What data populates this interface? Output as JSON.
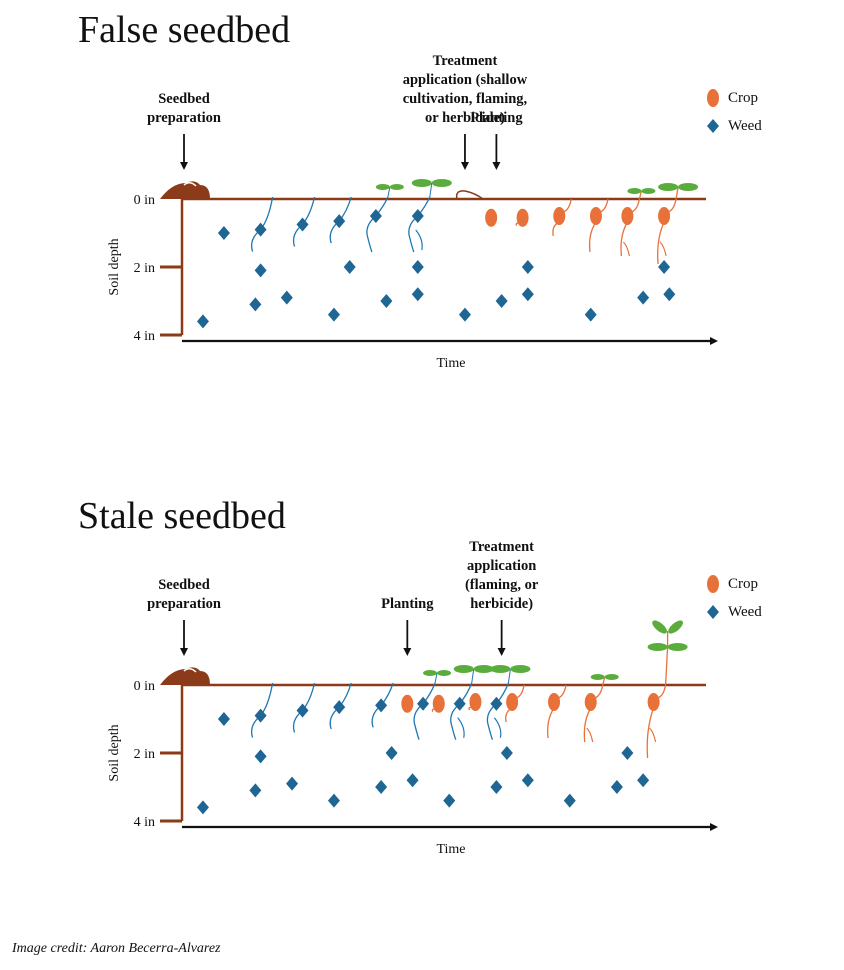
{
  "colors": {
    "soil": "#8b3a1a",
    "crop": "#e8713a",
    "weed": "#1f6694",
    "leaf": "#5aad3c",
    "weed_root": "#1f78b4",
    "arrow": "#111111"
  },
  "legend": {
    "crop_label": "Crop",
    "weed_label": "Weed",
    "crop_icon": "orange-ellipse-seed",
    "weed_icon": "blue-diamond-seed"
  },
  "axes": {
    "y_label": "Soil depth",
    "x_label": "Time",
    "y_ticks": [
      "0 in",
      "2 in",
      "4 in"
    ],
    "y_tick_values_in": [
      0,
      2,
      4
    ]
  },
  "panels": [
    {
      "id": "false",
      "title": "False seedbed",
      "annotations": [
        {
          "key": "seedbed",
          "lines": [
            "Seedbed",
            "preparation"
          ],
          "time": 0.0
        },
        {
          "key": "treatment",
          "lines": [
            "Treatment",
            "application (shallow",
            "cultivation, flaming,",
            "or herbicide)"
          ],
          "time": 0.54
        },
        {
          "key": "planting",
          "lines": [
            "Planting"
          ],
          "time": 0.6
        }
      ],
      "treatment_mark": "cut-weed-residue",
      "weeds_scattered": [
        [
          0.08,
          1.0
        ],
        [
          0.15,
          2.1
        ],
        [
          0.32,
          2.0
        ],
        [
          0.45,
          2.0
        ],
        [
          0.66,
          2.0
        ],
        [
          0.92,
          2.0
        ],
        [
          0.04,
          3.6
        ],
        [
          0.14,
          3.1
        ],
        [
          0.2,
          2.9
        ],
        [
          0.29,
          3.4
        ],
        [
          0.39,
          3.0
        ],
        [
          0.45,
          2.8
        ],
        [
          0.54,
          3.4
        ],
        [
          0.61,
          3.0
        ],
        [
          0.66,
          2.8
        ],
        [
          0.78,
          3.4
        ],
        [
          0.88,
          2.9
        ],
        [
          0.93,
          2.8
        ]
      ],
      "weeds_germinating": [
        {
          "t": 0.15,
          "d": 0.9,
          "stage": 1
        },
        {
          "t": 0.23,
          "d": 0.75,
          "stage": 1
        },
        {
          "t": 0.3,
          "d": 0.65,
          "stage": 1
        },
        {
          "t": 0.37,
          "d": 0.5,
          "stage": 2
        },
        {
          "t": 0.45,
          "d": 0.5,
          "stage": 3
        }
      ],
      "crops": [
        {
          "t": 0.59,
          "d": 0.55,
          "stage": 0
        },
        {
          "t": 0.65,
          "d": 0.55,
          "stage": 1
        },
        {
          "t": 0.72,
          "d": 0.5,
          "stage": 2
        },
        {
          "t": 0.79,
          "d": 0.5,
          "stage": 3
        },
        {
          "t": 0.85,
          "d": 0.5,
          "stage": 4
        },
        {
          "t": 0.92,
          "d": 0.5,
          "stage": 5
        }
      ]
    },
    {
      "id": "stale",
      "title": "Stale seedbed",
      "annotations": [
        {
          "key": "seedbed",
          "lines": [
            "Seedbed",
            "preparation"
          ],
          "time": 0.0
        },
        {
          "key": "planting",
          "lines": [
            "Planting"
          ],
          "time": 0.43
        },
        {
          "key": "treatment",
          "lines": [
            "Treatment",
            "application",
            "(flaming, or",
            "herbicide)"
          ],
          "time": 0.61
        }
      ],
      "treatment_mark": "none",
      "weeds_scattered": [
        [
          0.08,
          1.0
        ],
        [
          0.15,
          2.1
        ],
        [
          0.4,
          2.0
        ],
        [
          0.62,
          2.0
        ],
        [
          0.85,
          2.0
        ],
        [
          0.04,
          3.6
        ],
        [
          0.14,
          3.1
        ],
        [
          0.21,
          2.9
        ],
        [
          0.29,
          3.4
        ],
        [
          0.38,
          3.0
        ],
        [
          0.44,
          2.8
        ],
        [
          0.51,
          3.4
        ],
        [
          0.6,
          3.0
        ],
        [
          0.66,
          2.8
        ],
        [
          0.74,
          3.4
        ],
        [
          0.83,
          3.0
        ],
        [
          0.88,
          2.8
        ]
      ],
      "weeds_germinating": [
        {
          "t": 0.15,
          "d": 0.9,
          "stage": 1
        },
        {
          "t": 0.23,
          "d": 0.75,
          "stage": 1
        },
        {
          "t": 0.3,
          "d": 0.65,
          "stage": 1
        },
        {
          "t": 0.38,
          "d": 0.6,
          "stage": 1
        },
        {
          "t": 0.46,
          "d": 0.55,
          "stage": 2
        },
        {
          "t": 0.53,
          "d": 0.55,
          "stage": 3
        },
        {
          "t": 0.6,
          "d": 0.55,
          "stage": 3
        }
      ],
      "crops": [
        {
          "t": 0.43,
          "d": 0.55,
          "stage": 0
        },
        {
          "t": 0.49,
          "d": 0.55,
          "stage": 1
        },
        {
          "t": 0.56,
          "d": 0.5,
          "stage": 1
        },
        {
          "t": 0.63,
          "d": 0.5,
          "stage": 2
        },
        {
          "t": 0.71,
          "d": 0.5,
          "stage": 3
        },
        {
          "t": 0.78,
          "d": 0.5,
          "stage": 4
        },
        {
          "t": 0.9,
          "d": 0.5,
          "stage": 6
        }
      ]
    }
  ],
  "credit": "Image credit: Aaron Becerra-Alvarez"
}
